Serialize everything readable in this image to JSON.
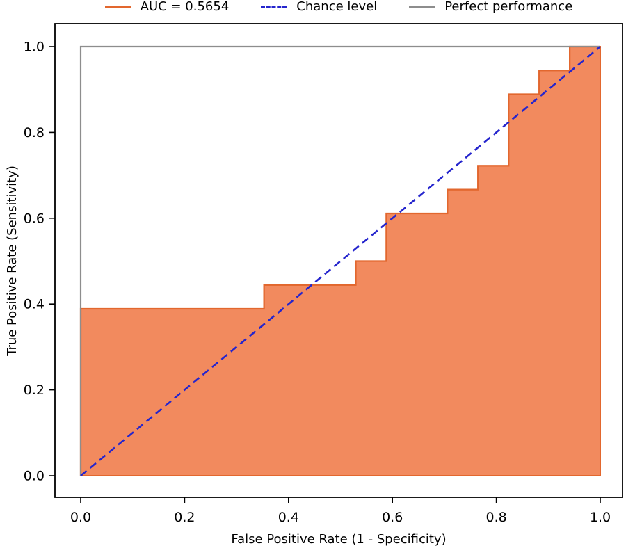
{
  "legend": {
    "items": [
      {
        "label": "AUC = 0.5654",
        "color": "#e2672e",
        "style": "solid"
      },
      {
        "label": "Chance level",
        "color": "#2525cd",
        "style": "dashed"
      },
      {
        "label": "Perfect performance",
        "color": "#8d8d8d",
        "style": "solid"
      }
    ]
  },
  "chart_data": {
    "type": "line",
    "title": "",
    "xlabel": "False Positive Rate (1 - Specificity)",
    "ylabel": "True Positive Rate (Sensitivity)",
    "xlim": [
      -0.05,
      1.05
    ],
    "ylim": [
      -0.05,
      1.05
    ],
    "grid": false,
    "legend_position": "top-center",
    "x_ticks": [
      0.0,
      0.2,
      0.4,
      0.6,
      0.8,
      1.0
    ],
    "y_ticks": [
      0.0,
      0.2,
      0.4,
      0.6,
      0.8,
      1.0
    ],
    "x_tick_labels": [
      "0.0",
      "0.2",
      "0.4",
      "0.6",
      "0.8",
      "1.0"
    ],
    "y_tick_labels": [
      "0.0",
      "0.2",
      "0.4",
      "0.6",
      "0.8",
      "1.0"
    ],
    "auc": 0.5654,
    "series": [
      {
        "name": "AUC = 0.5654",
        "type": "step",
        "color": "#e2672e",
        "fill_color": "#f28a5e",
        "x": [
          0.0,
          0.0,
          0.3529,
          0.3529,
          0.5294,
          0.5294,
          0.5882,
          0.5882,
          0.7059,
          0.7059,
          0.7647,
          0.7647,
          0.8235,
          0.8235,
          0.8824,
          0.8824,
          0.9412,
          0.9412,
          1.0
        ],
        "y": [
          0.0,
          0.3889,
          0.3889,
          0.4444,
          0.4444,
          0.5,
          0.5,
          0.6111,
          0.6111,
          0.6667,
          0.6667,
          0.7222,
          0.7222,
          0.8889,
          0.8889,
          0.9444,
          0.9444,
          1.0,
          1.0
        ]
      },
      {
        "name": "Chance level",
        "type": "line",
        "dashed": true,
        "color": "#2525cd",
        "x": [
          0.0,
          1.0
        ],
        "y": [
          0.0,
          1.0
        ]
      },
      {
        "name": "Perfect performance",
        "type": "line",
        "color": "#8d8d8d",
        "x": [
          0.0,
          0.0,
          1.0
        ],
        "y": [
          0.0,
          1.0,
          1.0
        ]
      }
    ]
  }
}
